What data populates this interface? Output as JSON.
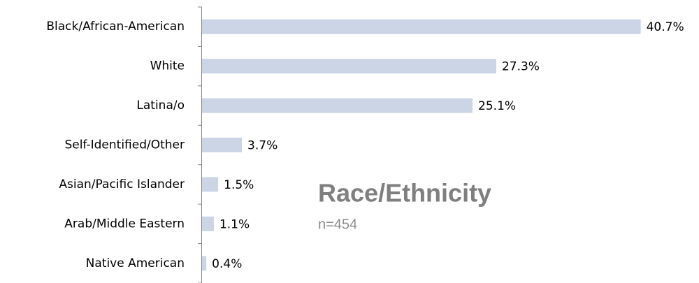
{
  "chart_data": {
    "type": "bar",
    "orientation": "horizontal",
    "title": "Race/Ethnicity",
    "subtitle": "n=454",
    "categories": [
      "Black/African-American",
      "White",
      "Latina/o",
      "Self-Identified/Other",
      "Asian/Pacific Islander",
      "Arab/Middle Eastern",
      "Native American"
    ],
    "values": [
      40.7,
      27.3,
      25.1,
      3.7,
      1.5,
      1.1,
      0.4
    ],
    "value_labels": [
      "40.7%",
      "27.3%",
      "25.1%",
      "3.7%",
      "1.5%",
      "1.1%",
      "0.4%"
    ],
    "color": "#ccd5e6"
  }
}
